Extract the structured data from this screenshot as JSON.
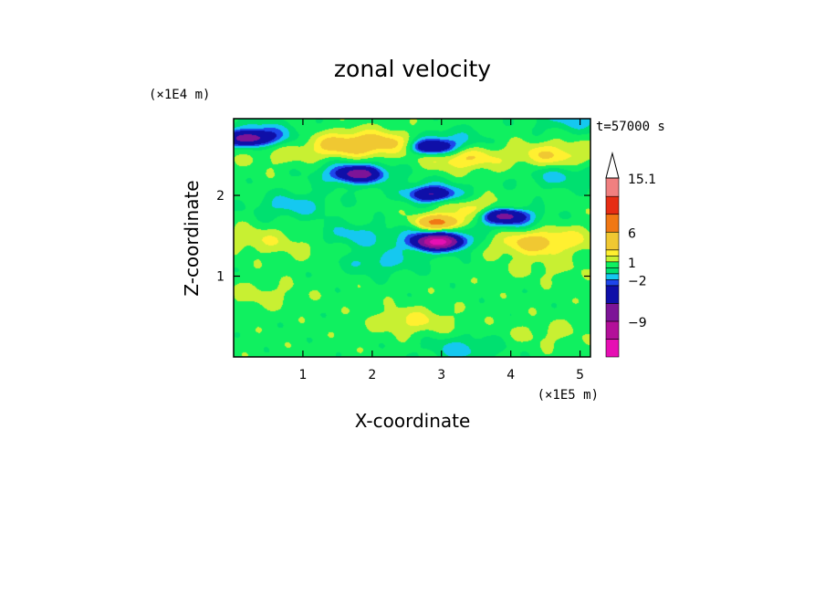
{
  "chart_data": {
    "type": "heatmap",
    "title": "zonal velocity",
    "xlabel": "X-coordinate",
    "ylabel": "Z-coordinate",
    "x_scale_label": "(×1E5 m)",
    "y_scale_label": "(×1E4 m)",
    "time_label": "t=57000 s",
    "xlim": [
      0,
      5.15
    ],
    "ylim": [
      0,
      2.95
    ],
    "x_ticks": [
      1,
      2,
      3,
      4,
      5
    ],
    "y_ticks": [
      1,
      2
    ],
    "colorbar": {
      "levels": [
        -15,
        -12,
        -9,
        -6,
        -3,
        -2,
        -1,
        0,
        1,
        2,
        3,
        6,
        9,
        12,
        15.1
      ],
      "labels": [
        {
          "text": "15.1",
          "value": 15.1
        },
        {
          "text": "6",
          "value": 6
        },
        {
          "text": "1",
          "value": 1
        },
        {
          "text": "−2",
          "value": -2
        },
        {
          "text": "−9",
          "value": -9
        }
      ],
      "colors": [
        "#e60fb3",
        "#b31099",
        "#7d1497",
        "#0f0fa8",
        "#1e46eb",
        "#15c8f0",
        "#00e070",
        "#10f060",
        "#c8f032",
        "#fff030",
        "#f0c832",
        "#f07814",
        "#e62d14",
        "#f08080",
        "#f5b4b4"
      ],
      "extend": "max"
    },
    "field_samples": {
      "background_value": 0.5,
      "features": [
        {
          "x": 1.55,
          "z": 2.63,
          "value": 3.5
        },
        {
          "x": 2.2,
          "z": 2.65,
          "value": 3.2
        },
        {
          "x": 3.3,
          "z": 2.48,
          "value": 3.4
        },
        {
          "x": 4.6,
          "z": 2.5,
          "value": 3.0
        },
        {
          "x": 0.6,
          "z": 2.52,
          "value": 1.5
        },
        {
          "x": 2.9,
          "z": 2.0,
          "value": 1.4
        },
        {
          "x": 2.95,
          "z": 1.67,
          "value": 7.0
        },
        {
          "x": 3.5,
          "z": 1.82,
          "value": 3.0
        },
        {
          "x": 4.3,
          "z": 1.42,
          "value": 3.5
        },
        {
          "x": 4.9,
          "z": 1.48,
          "value": 1.5
        },
        {
          "x": 0.35,
          "z": 1.45,
          "value": 1.8
        },
        {
          "x": 1.2,
          "z": 1.38,
          "value": 1.2
        },
        {
          "x": 4.5,
          "z": 1.12,
          "value": 1.3
        },
        {
          "x": 0.4,
          "z": 0.77,
          "value": 1.4
        },
        {
          "x": 2.6,
          "z": 0.45,
          "value": 2.2
        },
        {
          "x": 4.5,
          "z": 0.3,
          "value": 1.3
        },
        {
          "x": 0.2,
          "z": 2.71,
          "value": -5.5
        },
        {
          "x": 0.4,
          "z": 2.75,
          "value": -2.5
        },
        {
          "x": 1.8,
          "z": 2.27,
          "value": -5.0
        },
        {
          "x": 1.75,
          "z": 2.28,
          "value": -2.4
        },
        {
          "x": 2.95,
          "z": 1.43,
          "value": -11.0
        },
        {
          "x": 2.9,
          "z": 1.45,
          "value": -2.3
        },
        {
          "x": 2.85,
          "z": 2.02,
          "value": -4.5
        },
        {
          "x": 2.9,
          "z": 2.03,
          "value": -2.1
        },
        {
          "x": 3.05,
          "z": 2.65,
          "value": -2.2
        },
        {
          "x": 2.85,
          "z": 2.6,
          "value": -5.0
        },
        {
          "x": 3.9,
          "z": 1.75,
          "value": -5.5
        },
        {
          "x": 3.9,
          "z": 1.72,
          "value": -2.2
        },
        {
          "x": 0.85,
          "z": 1.88,
          "value": -1.5
        },
        {
          "x": 1.7,
          "z": 1.5,
          "value": -1.5
        },
        {
          "x": 2.1,
          "z": 1.18,
          "value": -1.3
        },
        {
          "x": 4.9,
          "z": 2.95,
          "value": -1.5
        },
        {
          "x": 3.3,
          "z": 0.1,
          "value": -1.4
        },
        {
          "x": 4.7,
          "z": 2.25,
          "value": -1.3
        }
      ]
    }
  }
}
